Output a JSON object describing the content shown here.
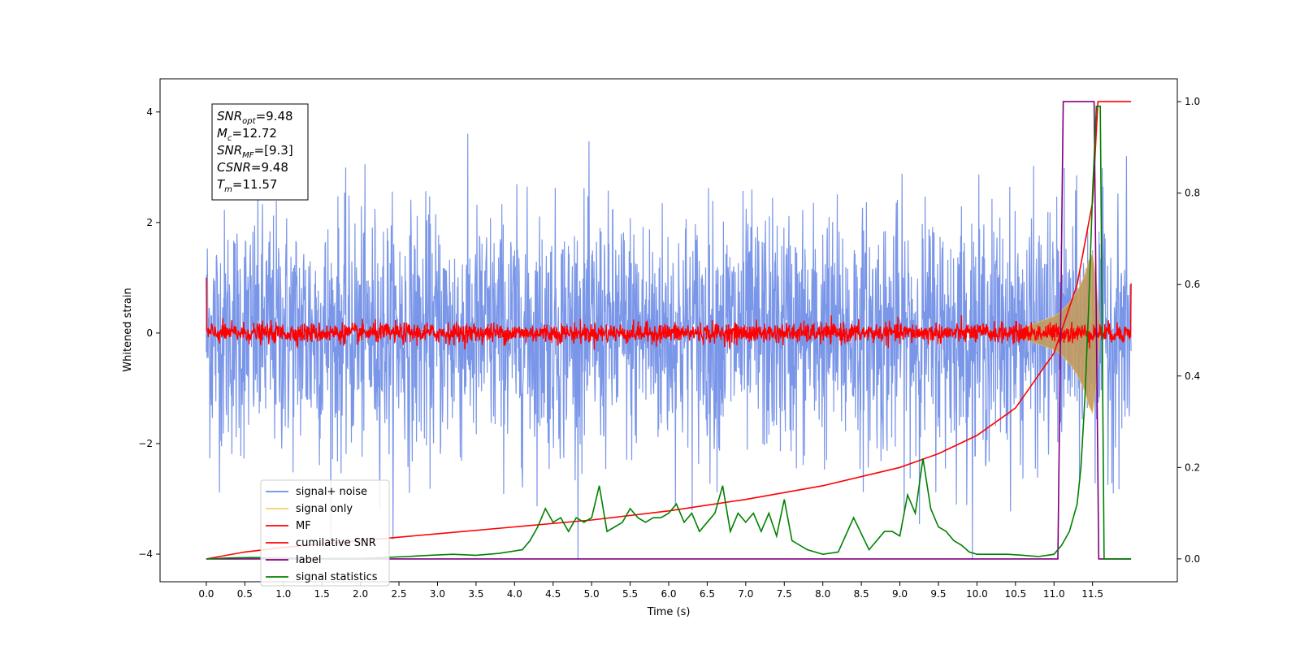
{
  "chart_data": {
    "type": "line",
    "xlabel": "Time (s)",
    "ylabel": "Whitened strain",
    "xlim": [
      -0.6,
      12.6
    ],
    "ylim": [
      -4.5,
      4.6
    ],
    "y2lim": [
      -0.05,
      1.05
    ],
    "x_ticks": [
      0.0,
      0.5,
      1.0,
      1.5,
      2.0,
      2.5,
      3.0,
      3.5,
      4.0,
      4.5,
      5.0,
      5.5,
      6.0,
      6.5,
      7.0,
      7.5,
      8.0,
      8.5,
      9.0,
      9.5,
      10.0,
      10.5,
      11.0,
      11.5
    ],
    "x_tick_labels": [
      "0.0",
      "0.5",
      "1.0",
      "1.5",
      "2.0",
      "2.5",
      "3.0",
      "3.5",
      "4.0",
      "4.5",
      "5.0",
      "5.5",
      "6.0",
      "6.5",
      "7.0",
      "7.5",
      "8.0",
      "8.5",
      "9.0",
      "9.5",
      "10.0",
      "10.5",
      "11.0",
      "11.5"
    ],
    "y_ticks": [
      -4,
      -2,
      0,
      2,
      4
    ],
    "y_tick_labels": [
      "−4",
      "−2",
      "0",
      "2",
      "4"
    ],
    "y2_ticks": [
      0.0,
      0.2,
      0.4,
      0.6,
      0.8,
      1.0
    ],
    "y2_tick_labels": [
      "0.0",
      "0.2",
      "0.4",
      "0.6",
      "0.8",
      "1.0"
    ],
    "grid": false,
    "legend_position": "lower-left",
    "annotation": {
      "position": "top-left",
      "lines": [
        {
          "symbol": "SNR",
          "sub": "opt",
          "value": "=9.48"
        },
        {
          "symbol": "M",
          "sub": "c",
          "value": "=12.72"
        },
        {
          "symbol": "SNR",
          "sub": "MF",
          "value": "=[9.3]"
        },
        {
          "symbol": "CSNR",
          "sub": "",
          "value": "=9.48"
        },
        {
          "symbol": "T",
          "sub": "m",
          "value": "=11.57"
        }
      ]
    },
    "series": [
      {
        "name": "signal+ noise",
        "color": "#6b8be6",
        "axis": "left",
        "x_range": [
          0.0,
          12.0
        ],
        "noise_std": 1.1,
        "peak_value": 4.2,
        "min_value": -4.1
      },
      {
        "name": "signal only",
        "color": "#f5c04a",
        "axis": "left",
        "x": [
          10.6,
          10.8,
          11.0,
          11.1,
          11.2,
          11.3,
          11.4,
          11.45,
          11.5,
          11.55,
          11.6
        ],
        "envelope": [
          0.1,
          0.2,
          0.3,
          0.4,
          0.55,
          0.75,
          1.05,
          1.3,
          1.45,
          0.9,
          0.0
        ]
      },
      {
        "name": "MF",
        "color": "#ff0000",
        "axis": "left",
        "x_range": [
          0.0,
          12.0
        ],
        "noise_std": 0.09,
        "start_value": 1.0,
        "end_value": 0.9
      },
      {
        "name": "cumilative SNR",
        "color": "#ff0000",
        "axis": "right",
        "x": [
          0.0,
          0.5,
          1.0,
          2.0,
          3.0,
          4.0,
          5.0,
          6.0,
          7.0,
          8.0,
          9.0,
          9.5,
          10.0,
          10.5,
          11.0,
          11.3,
          11.5,
          11.57,
          12.0
        ],
        "y": [
          0.0,
          0.015,
          0.025,
          0.04,
          0.055,
          0.07,
          0.085,
          0.105,
          0.13,
          0.16,
          0.2,
          0.23,
          0.27,
          0.33,
          0.45,
          0.6,
          0.78,
          1.0,
          1.0
        ]
      },
      {
        "name": "label",
        "color": "#800080",
        "axis": "right",
        "x": [
          0.0,
          11.05,
          11.12,
          11.52,
          11.58,
          12.0
        ],
        "y": [
          0.0,
          0.0,
          1.0,
          1.0,
          0.0,
          0.0
        ]
      },
      {
        "name": "signal statistics",
        "color": "#008000",
        "axis": "right",
        "x": [
          0.0,
          0.3,
          0.6,
          1.0,
          1.5,
          2.0,
          2.3,
          2.6,
          2.9,
          3.2,
          3.5,
          3.8,
          4.1,
          4.2,
          4.3,
          4.4,
          4.5,
          4.6,
          4.7,
          4.8,
          4.9,
          5.0,
          5.1,
          5.2,
          5.3,
          5.4,
          5.5,
          5.6,
          5.7,
          5.8,
          5.9,
          6.0,
          6.1,
          6.2,
          6.3,
          6.4,
          6.5,
          6.6,
          6.7,
          6.8,
          6.9,
          7.0,
          7.1,
          7.2,
          7.3,
          7.4,
          7.5,
          7.6,
          7.7,
          7.8,
          7.9,
          8.0,
          8.2,
          8.4,
          8.6,
          8.8,
          8.9,
          9.0,
          9.1,
          9.2,
          9.3,
          9.4,
          9.5,
          9.6,
          9.7,
          9.8,
          9.9,
          10.0,
          10.2,
          10.4,
          10.6,
          10.8,
          11.0,
          11.1,
          11.2,
          11.3,
          11.35,
          11.4,
          11.45,
          11.5,
          11.55,
          11.6,
          11.65,
          12.0
        ],
        "y": [
          0.0,
          0.002,
          0.003,
          0.002,
          0.001,
          0.001,
          0.003,
          0.005,
          0.008,
          0.01,
          0.008,
          0.012,
          0.02,
          0.04,
          0.07,
          0.11,
          0.08,
          0.09,
          0.06,
          0.09,
          0.08,
          0.09,
          0.16,
          0.06,
          0.07,
          0.08,
          0.11,
          0.09,
          0.08,
          0.09,
          0.09,
          0.1,
          0.12,
          0.08,
          0.1,
          0.06,
          0.08,
          0.1,
          0.16,
          0.06,
          0.1,
          0.08,
          0.1,
          0.06,
          0.1,
          0.05,
          0.13,
          0.04,
          0.03,
          0.02,
          0.015,
          0.01,
          0.015,
          0.09,
          0.02,
          0.06,
          0.06,
          0.05,
          0.14,
          0.1,
          0.22,
          0.11,
          0.07,
          0.06,
          0.04,
          0.03,
          0.015,
          0.01,
          0.01,
          0.01,
          0.008,
          0.005,
          0.01,
          0.03,
          0.06,
          0.12,
          0.2,
          0.35,
          0.55,
          0.8,
          0.99,
          0.99,
          0.0,
          0.0
        ]
      }
    ]
  }
}
